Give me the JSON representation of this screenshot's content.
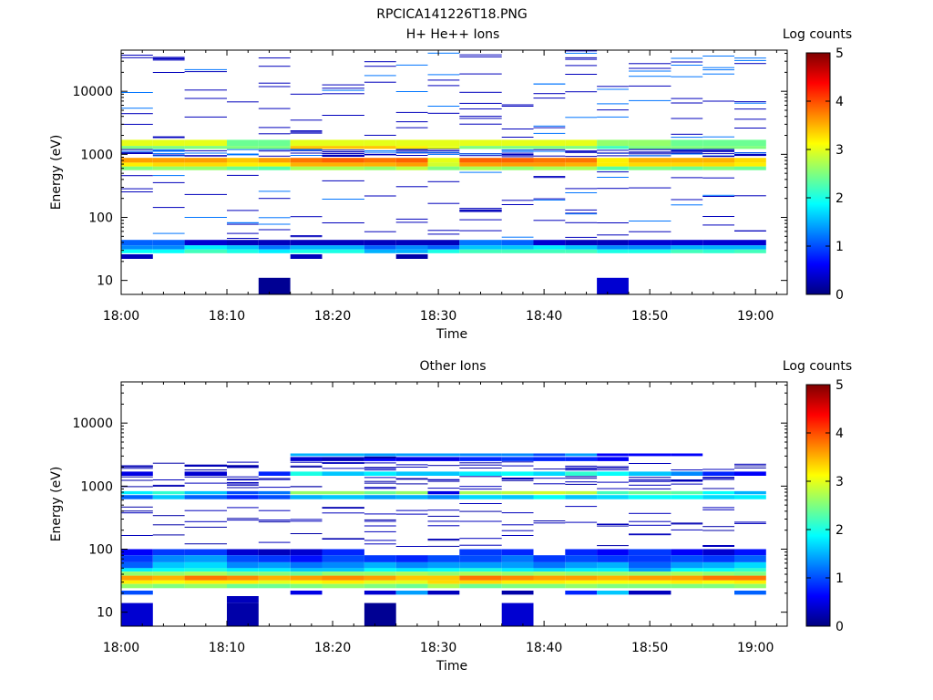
{
  "figure_title": "RPCICA141226T18.PNG",
  "colormap": [
    "#00007f",
    "#0000ff",
    "#007fff",
    "#00ffff",
    "#7fff7f",
    "#ffff00",
    "#ff7f00",
    "#ff0000",
    "#7f0000"
  ],
  "chart_data": [
    {
      "type": "heatmap",
      "title": "H+ He++ Ions",
      "xlabel": "Time",
      "ylabel": "Energy (eV)",
      "colorbar_label": "Log counts",
      "y_scale": "log",
      "xlim": [
        "18:00",
        "19:03"
      ],
      "ylim": [
        6,
        45000
      ],
      "x_ticks": [
        "18:00",
        "18:10",
        "18:20",
        "18:30",
        "18:40",
        "18:50",
        "19:00"
      ],
      "y_ticks": [
        "10",
        "100",
        "1000",
        "10000"
      ],
      "y_tick_values": [
        10,
        100,
        1000,
        10000
      ],
      "minor_y_ticks": [
        20,
        30,
        40,
        50,
        60,
        70,
        80,
        90,
        200,
        300,
        400,
        500,
        600,
        700,
        800,
        900,
        2000,
        3000,
        4000,
        5000,
        6000,
        7000,
        8000,
        9000,
        20000,
        30000,
        40000
      ],
      "colorbar_ticks": [
        "0",
        "1",
        "2",
        "3",
        "4",
        "5"
      ],
      "clim": [
        0,
        5
      ],
      "time_bins": [
        "18:00",
        "18:03",
        "18:06",
        "18:10",
        "18:13",
        "18:16",
        "18:19",
        "18:23",
        "18:26",
        "18:29",
        "18:32",
        "18:36",
        "18:39",
        "18:42",
        "18:45",
        "18:48",
        "18:52",
        "18:55",
        "18:58",
        "19:01"
      ],
      "bands": [
        {
          "e": [
            1360,
            1700
          ],
          "v": [
            3.0,
            3.0,
            3.0,
            2.4,
            2.4,
            3.0,
            3.0,
            3.0,
            3.0,
            3.0,
            3.0,
            3.0,
            3.0,
            3.0,
            2.6,
            2.6,
            2.4,
            2.4,
            2.4
          ]
        },
        {
          "e": [
            1220,
            1360
          ],
          "v": [
            2.5,
            2.5,
            2.5,
            2.5,
            2.5,
            3.4,
            3.4,
            3.4,
            3.2,
            3.0,
            2.5,
            2.5,
            2.5,
            2.5,
            2.2,
            2.5,
            2.5,
            2.5,
            2.5
          ]
        },
        {
          "e": [
            740,
            880
          ],
          "v": [
            3.6,
            3.6,
            3.6,
            3.4,
            3.6,
            3.8,
            3.9,
            3.8,
            3.9,
            3.0,
            3.9,
            3.9,
            3.8,
            3.8,
            3.2,
            3.5,
            3.5,
            3.5,
            3.3
          ]
        },
        {
          "e": [
            640,
            740
          ],
          "v": [
            3.2,
            3.3,
            3.3,
            3.2,
            3.2,
            3.5,
            3.5,
            3.5,
            3.6,
            2.9,
            3.6,
            3.6,
            3.6,
            3.5,
            3.2,
            3.3,
            3.3,
            3.3,
            3.2
          ]
        },
        {
          "e": [
            560,
            640
          ],
          "v": [
            2.5,
            2.6,
            2.6,
            2.4,
            2.3,
            2.7,
            2.7,
            2.6,
            2.8,
            2.5,
            2.7,
            2.6,
            2.7,
            2.7,
            2.3,
            2.5,
            2.4,
            2.5,
            2.4
          ]
        },
        {
          "e": [
            36,
            44
          ],
          "v": [
            1.1,
            1.1,
            0.4,
            0.3,
            0.3,
            0.3,
            0.3,
            0.3,
            0.3,
            0.3,
            1.2,
            1.1,
            0.4,
            0.3,
            0.3,
            0.4,
            0.4,
            0.4,
            0.4
          ]
        },
        {
          "e": [
            31,
            36
          ],
          "v": [
            1.3,
            1.3,
            1.8,
            1.6,
            1.2,
            1.5,
            1.5,
            1.1,
            1.3,
            1.1,
            1.6,
            1.6,
            1.8,
            1.6,
            1.3,
            1.3,
            1.5,
            1.5,
            1.5
          ]
        },
        {
          "e": [
            27,
            31
          ],
          "v": [
            1.9,
            1.9,
            2.2,
            2.0,
            1.8,
            2.0,
            2.0,
            1.5,
            1.5,
            2.0,
            2.2,
            2.2,
            2.2,
            2.2,
            2.0,
            2.0,
            2.2,
            2.1,
            2.2
          ]
        },
        {
          "e": [
            22,
            26
          ],
          "v": [
            0.3,
            null,
            null,
            null,
            null,
            0.3,
            null,
            null,
            0.2,
            null,
            null,
            null,
            null,
            null,
            null,
            null,
            null,
            null,
            null
          ]
        },
        {
          "e": [
            6,
            11
          ],
          "v": [
            null,
            null,
            null,
            null,
            0.1,
            null,
            null,
            null,
            null,
            null,
            null,
            null,
            null,
            null,
            0.4,
            null,
            null,
            null,
            null
          ]
        }
      ],
      "speckle": {
        "levels": [
          0.3,
          0.3,
          0.3,
          1.2
        ],
        "ranges": [
          [
            45,
            550,
            0.22
          ],
          [
            1800,
            45000,
            0.42
          ],
          [
            900,
            1200,
            0.35
          ]
        ]
      }
    },
    {
      "type": "heatmap",
      "title": "Other Ions",
      "xlabel": "Time",
      "ylabel": "Energy (eV)",
      "colorbar_label": "Log counts",
      "y_scale": "log",
      "xlim": [
        "18:00",
        "19:03"
      ],
      "ylim": [
        6,
        45000
      ],
      "x_ticks": [
        "18:00",
        "18:10",
        "18:20",
        "18:30",
        "18:40",
        "18:50",
        "19:00"
      ],
      "y_ticks": [
        "10",
        "100",
        "1000",
        "10000"
      ],
      "y_tick_values": [
        10,
        100,
        1000,
        10000
      ],
      "minor_y_ticks": [
        20,
        30,
        40,
        50,
        60,
        70,
        80,
        90,
        200,
        300,
        400,
        500,
        600,
        700,
        800,
        900,
        2000,
        3000,
        4000,
        5000,
        6000,
        7000,
        8000,
        9000,
        20000,
        30000,
        40000
      ],
      "colorbar_ticks": [
        "0",
        "1",
        "2",
        "3",
        "4",
        "5"
      ],
      "clim": [
        0,
        5
      ],
      "time_bins": [
        "18:00",
        "18:03",
        "18:06",
        "18:10",
        "18:13",
        "18:16",
        "18:19",
        "18:23",
        "18:26",
        "18:29",
        "18:32",
        "18:36",
        "18:39",
        "18:42",
        "18:45",
        "18:48",
        "18:52",
        "18:55",
        "18:58",
        "19:01"
      ],
      "bands": [
        {
          "e": [
            3000,
            3300
          ],
          "v": [
            null,
            null,
            null,
            null,
            null,
            1.5,
            1.5,
            1.4,
            1.4,
            1.4,
            1.3,
            1.3,
            1.0,
            1.4,
            0.6,
            0.6,
            0.6,
            null,
            null
          ]
        },
        {
          "e": [
            2500,
            2900
          ],
          "v": [
            null,
            null,
            null,
            null,
            null,
            0.4,
            0.3,
            0.6,
            0.5,
            0.5,
            0.8,
            0.9,
            0.8,
            0.8,
            0.6,
            null,
            null,
            null,
            null
          ]
        },
        {
          "e": [
            1460,
            1700
          ],
          "v": [
            0.5,
            null,
            0.4,
            null,
            0.8,
            2.0,
            1.6,
            1.8,
            1.6,
            1.6,
            1.8,
            1.9,
            1.7,
            2.1,
            1.9,
            1.6,
            1.3,
            0.8,
            0.6
          ]
        },
        {
          "e": [
            740,
            830
          ],
          "v": [
            1.8,
            2.1,
            1.6,
            1.0,
            1.2,
            2.6,
            2.6,
            2.4,
            2.6,
            0.5,
            2.7,
            2.8,
            2.9,
            2.8,
            2.2,
            2.4,
            2.3,
            1.9,
            1.5
          ]
        },
        {
          "e": [
            620,
            720
          ],
          "v": [
            1.1,
            1.6,
            1.1,
            0.8,
            1.0,
            1.5,
            1.6,
            1.4,
            1.5,
            1.3,
            1.7,
            1.6,
            1.9,
            1.6,
            1.7,
            1.9,
            1.9,
            1.7,
            1.8
          ]
        },
        {
          "e": [
            80,
            100
          ],
          "v": [
            0.6,
            0.9,
            0.9,
            0.4,
            0.3,
            0.4,
            0.8,
            null,
            null,
            null,
            0.9,
            0.8,
            null,
            0.8,
            0.6,
            0.9,
            0.6,
            0.4,
            0.7
          ]
        },
        {
          "e": [
            62,
            80
          ],
          "v": [
            0.9,
            1.3,
            1.4,
            1.0,
            0.9,
            0.7,
            1.0,
            0.9,
            0.8,
            1.0,
            1.0,
            1.2,
            0.9,
            1.0,
            0.9,
            0.9,
            1.0,
            0.9,
            1.1
          ]
        },
        {
          "e": [
            50,
            62
          ],
          "v": [
            1.1,
            1.6,
            1.7,
            1.3,
            1.4,
            1.2,
            1.3,
            1.5,
            1.3,
            1.4,
            1.4,
            1.4,
            1.2,
            1.4,
            1.5,
            1.1,
            1.4,
            1.5,
            1.7
          ]
        },
        {
          "e": [
            44,
            50
          ],
          "v": [
            1.8,
            1.9,
            2.0,
            1.8,
            1.8,
            1.6,
            1.6,
            1.9,
            1.8,
            1.9,
            2.0,
            1.8,
            1.7,
            1.8,
            1.8,
            1.4,
            1.9,
            1.9,
            2.1
          ]
        },
        {
          "e": [
            38,
            44
          ],
          "v": [
            2.6,
            2.6,
            2.7,
            2.5,
            2.5,
            2.4,
            2.6,
            2.6,
            2.7,
            2.6,
            2.7,
            2.6,
            2.7,
            2.6,
            2.6,
            2.6,
            2.7,
            2.6,
            2.5
          ]
        },
        {
          "e": [
            32,
            38
          ],
          "v": [
            3.6,
            3.5,
            3.8,
            3.7,
            3.5,
            3.6,
            3.7,
            3.6,
            3.4,
            3.4,
            3.8,
            3.7,
            3.6,
            3.6,
            3.5,
            3.6,
            3.6,
            3.8,
            3.8
          ]
        },
        {
          "e": [
            28,
            32
          ],
          "v": [
            3.2,
            3.1,
            3.2,
            3.2,
            3.0,
            3.1,
            3.2,
            3.0,
            3.0,
            3.3,
            3.3,
            3.2,
            3.2,
            3.1,
            3.1,
            3.1,
            3.2,
            3.1,
            3.2
          ]
        },
        {
          "e": [
            24,
            28
          ],
          "v": [
            2.6,
            2.5,
            2.6,
            2.4,
            2.4,
            2.5,
            2.6,
            2.5,
            2.4,
            2.7,
            2.4,
            2.5,
            2.5,
            2.6,
            2.5,
            2.5,
            2.5,
            2.5,
            2.6
          ]
        },
        {
          "e": [
            19,
            22
          ],
          "v": [
            1.0,
            null,
            null,
            null,
            null,
            0.5,
            null,
            0.4,
            1.4,
            0.3,
            null,
            0.2,
            null,
            0.8,
            1.6,
            0.3,
            null,
            null,
            1.1
          ]
        },
        {
          "e": [
            14,
            18
          ],
          "v": [
            null,
            null,
            null,
            0.3,
            null,
            null,
            null,
            null,
            null,
            null,
            null,
            null,
            null,
            null,
            null,
            null,
            null,
            null,
            null
          ]
        },
        {
          "e": [
            6,
            14
          ],
          "v": [
            0.4,
            null,
            null,
            0.2,
            null,
            null,
            null,
            0.1,
            null,
            null,
            null,
            0.4,
            null,
            null,
            null,
            null,
            null,
            null,
            null
          ]
        }
      ],
      "extras": [
        {
          "bin": 3,
          "e": [
            2000,
            2150
          ],
          "v": 0.2
        },
        {
          "bin": 7,
          "e": [
            2750,
            2950
          ],
          "v": 0.2
        }
      ],
      "speckle": {
        "levels": [
          0.3,
          0.3,
          0.2
        ],
        "ranges": [
          [
            105,
            540,
            0.22
          ],
          [
            870,
            1400,
            0.25
          ],
          [
            1750,
            2400,
            0.15
          ]
        ]
      }
    }
  ]
}
